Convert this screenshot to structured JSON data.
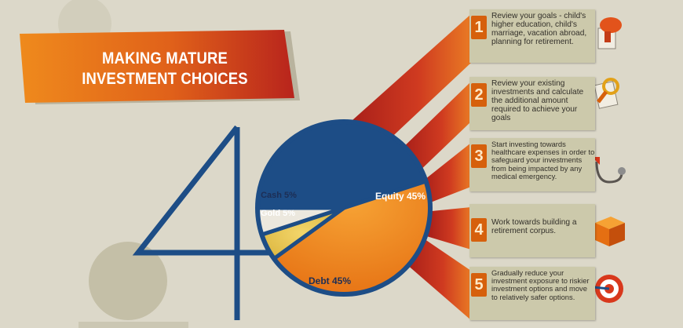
{
  "banner": {
    "line1": "MAKING MATURE",
    "line2": "INVESTMENT CHOICES"
  },
  "big_number": "40",
  "chart_data": {
    "type": "pie",
    "title": "",
    "slices": [
      {
        "label": "Equity 45%",
        "name": "Equity",
        "value": 45,
        "color": "#1d4d86",
        "label_color": "#ffffff"
      },
      {
        "label": "Debt 45%",
        "name": "Debt",
        "value": 45,
        "color": "#ef8a1c",
        "label_color": "#1d2e55"
      },
      {
        "label": "Gold 5%",
        "name": "Gold",
        "value": 5,
        "color": "#e7c94a",
        "label_color": "#ffffff"
      },
      {
        "label": "Cash 5%",
        "name": "Cash",
        "value": 5,
        "color": "#ece8de",
        "label_color": "#1d2e55"
      }
    ]
  },
  "steps": [
    {
      "number": "1",
      "text": [
        "Review your goals - child's",
        "higher education, child's",
        "marriage, vacation abroad,",
        "planning for retirement."
      ],
      "icon": "megaphone-icon"
    },
    {
      "number": "2",
      "text": [
        "Review your existing",
        "investments and calculate",
        "the additional amount",
        "required to achieve your goals"
      ],
      "icon": "magnifier-document-icon"
    },
    {
      "number": "3",
      "text": [
        "Start investing towards",
        "healthcare expenses in order to",
        "safeguard your investments",
        "from being impacted by any",
        "medical emergency."
      ],
      "icon": "stethoscope-icon"
    },
    {
      "number": "4",
      "text": [
        "Work towards building a",
        "retirement corpus."
      ],
      "icon": "box-icon"
    },
    {
      "number": "5",
      "text": [
        "Gradually reduce your",
        "investment exposure to riskier",
        "investment options and move",
        "to relatively safer options."
      ],
      "icon": "target-icon"
    }
  ],
  "colors": {
    "background": "#dcd8c9",
    "navy": "#1d4d86",
    "orange": "#ef8a1c",
    "red": "#c0301e",
    "box": "#ccc9ab"
  }
}
